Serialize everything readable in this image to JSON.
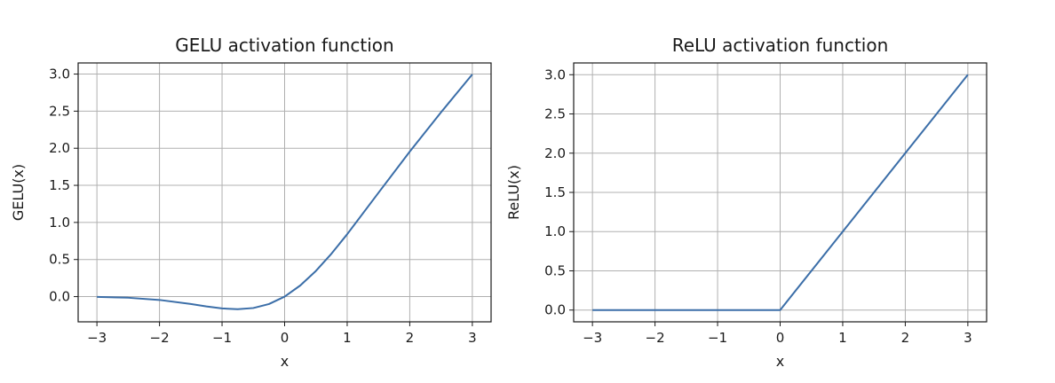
{
  "chart_data": [
    {
      "type": "line",
      "title": "GELU activation function",
      "xlabel": "x",
      "ylabel": "GELU(x)",
      "xlim": [
        -3.3,
        3.3
      ],
      "ylim": [
        -0.34,
        3.15
      ],
      "xticks": [
        -3,
        -2,
        -1,
        0,
        1,
        2,
        3
      ],
      "xtick_labels": [
        "−3",
        "−2",
        "−1",
        "0",
        "1",
        "2",
        "3"
      ],
      "yticks": [
        0.0,
        0.5,
        1.0,
        1.5,
        2.0,
        2.5,
        3.0
      ],
      "ytick_labels": [
        "0.0",
        "0.5",
        "1.0",
        "1.5",
        "2.0",
        "2.5",
        "3.0"
      ],
      "grid": true,
      "series": [
        {
          "color": "#3b6ea8",
          "x": [
            -3.0,
            -2.5,
            -2.0,
            -1.5,
            -1.25,
            -1.0,
            -0.75,
            -0.5,
            -0.25,
            0.0,
            0.25,
            0.5,
            0.75,
            1.0,
            1.5,
            2.0,
            2.5,
            3.0
          ],
          "y": [
            -0.004,
            -0.015,
            -0.045,
            -0.1,
            -0.132,
            -0.159,
            -0.17,
            -0.154,
            -0.1,
            0.0,
            0.15,
            0.346,
            0.58,
            0.841,
            1.4,
            1.955,
            2.485,
            2.996
          ]
        }
      ]
    },
    {
      "type": "line",
      "title": "ReLU activation function",
      "xlabel": "x",
      "ylabel": "ReLU(x)",
      "xlim": [
        -3.3,
        3.3
      ],
      "ylim": [
        -0.15,
        3.15
      ],
      "xticks": [
        -3,
        -2,
        -1,
        0,
        1,
        2,
        3
      ],
      "xtick_labels": [
        "−3",
        "−2",
        "−1",
        "0",
        "1",
        "2",
        "3"
      ],
      "yticks": [
        0.0,
        0.5,
        1.0,
        1.5,
        2.0,
        2.5,
        3.0
      ],
      "ytick_labels": [
        "0.0",
        "0.5",
        "1.0",
        "1.5",
        "2.0",
        "2.5",
        "3.0"
      ],
      "grid": true,
      "series": [
        {
          "color": "#3b6ea8",
          "x": [
            -3.0,
            0.0,
            3.0
          ],
          "y": [
            0.0,
            0.0,
            3.0
          ]
        }
      ]
    }
  ]
}
